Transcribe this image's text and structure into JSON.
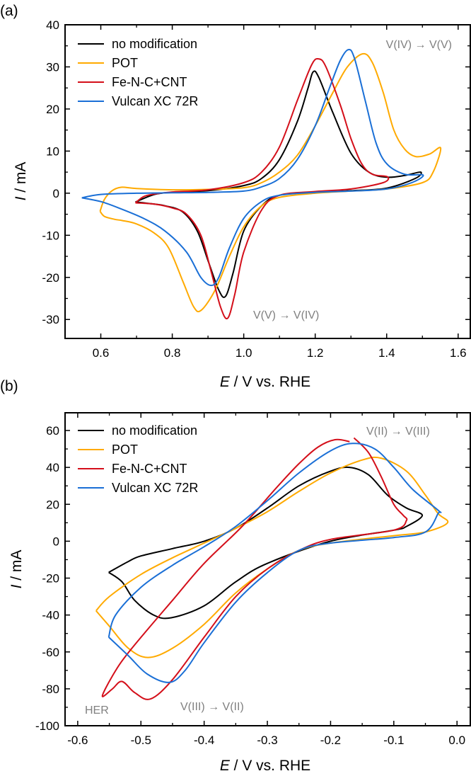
{
  "colors": {
    "no_modification": "#000000",
    "POT": "#FFAA00",
    "Fe-N-C+CNT": "#D40F1A",
    "Vulcan XC 72R": "#1A6FD6",
    "annotation": "#808080"
  },
  "chart_data": [
    {
      "type": "line",
      "panel_label": "(a)",
      "xlabel_italic": "E",
      "xlabel_rest": " / V vs. RHE",
      "ylabel_italic": "I",
      "ylabel_rest": " / mA",
      "xlim": [
        0.5,
        1.634
      ],
      "ylim": [
        -34.5,
        40
      ],
      "xticks": [
        "0.6",
        "0.8",
        "1.0",
        "1.2",
        "1.4",
        "1.6"
      ],
      "xminor_step": 0.1,
      "yticks": [
        "-30",
        "-20",
        "-10",
        "0",
        "10",
        "20",
        "30",
        "40"
      ],
      "yminor_step": 5,
      "grid": false,
      "legend_position": "top-left",
      "legend": [
        "no modification",
        "POT",
        "Fe-N-C+CNT",
        "Vulcan XC 72R"
      ],
      "annotations": [
        "V(IV) → V(V)",
        "V(V) → V(IV)"
      ],
      "series": [
        {
          "name": "no modification",
          "color": "#000000",
          "points": [
            [
              0.697,
              -2.1
            ],
            [
              0.75,
              -0.3
            ],
            [
              0.8,
              0.2
            ],
            [
              0.9,
              0.6
            ],
            [
              1.0,
              1.8
            ],
            [
              1.05,
              3.5
            ],
            [
              1.1,
              8
            ],
            [
              1.15,
              17
            ],
            [
              1.18,
              25
            ],
            [
              1.194,
              28.8
            ],
            [
              1.21,
              27.5
            ],
            [
              1.25,
              19
            ],
            [
              1.3,
              9.5
            ],
            [
              1.35,
              5
            ],
            [
              1.4,
              3.8
            ],
            [
              1.45,
              4.2
            ],
            [
              1.495,
              5.0
            ],
            [
              1.48,
              3.5
            ],
            [
              1.4,
              1.2
            ],
            [
              1.3,
              0.6
            ],
            [
              1.2,
              0.2
            ],
            [
              1.1,
              -0.5
            ],
            [
              1.05,
              -3
            ],
            [
              1.0,
              -9
            ],
            [
              0.97,
              -19
            ],
            [
              0.949,
              -24.5
            ],
            [
              0.93,
              -23
            ],
            [
              0.9,
              -16
            ],
            [
              0.87,
              -9
            ],
            [
              0.83,
              -4.5
            ],
            [
              0.78,
              -3
            ],
            [
              0.73,
              -2.4
            ],
            [
              0.697,
              -2.1
            ]
          ]
        },
        {
          "name": "POT",
          "color": "#FFAA00",
          "points": [
            [
              0.598,
              -4.3
            ],
            [
              0.61,
              -1.5
            ],
            [
              0.63,
              0.5
            ],
            [
              0.657,
              1.4
            ],
            [
              0.7,
              1.1
            ],
            [
              0.8,
              0.8
            ],
            [
              0.9,
              0.9
            ],
            [
              1.0,
              1.3
            ],
            [
              1.05,
              2.5
            ],
            [
              1.1,
              5
            ],
            [
              1.15,
              9
            ],
            [
              1.2,
              16
            ],
            [
              1.25,
              24
            ],
            [
              1.29,
              30
            ],
            [
              1.333,
              33.1
            ],
            [
              1.36,
              31
            ],
            [
              1.39,
              24
            ],
            [
              1.42,
              15
            ],
            [
              1.45,
              10.5
            ],
            [
              1.481,
              8.7
            ],
            [
              1.52,
              9.3
            ],
            [
              1.551,
              10.7
            ],
            [
              1.53,
              5
            ],
            [
              1.5,
              2.5
            ],
            [
              1.4,
              1
            ],
            [
              1.3,
              0.5
            ],
            [
              1.2,
              0
            ],
            [
              1.1,
              -1
            ],
            [
              1.05,
              -3
            ],
            [
              1.0,
              -8
            ],
            [
              0.96,
              -15
            ],
            [
              0.92,
              -23
            ],
            [
              0.881,
              -27.8
            ],
            [
              0.86,
              -27
            ],
            [
              0.83,
              -21
            ],
            [
              0.79,
              -13
            ],
            [
              0.75,
              -9.5
            ],
            [
              0.7,
              -7.3
            ],
            [
              0.66,
              -6.5
            ],
            [
              0.638,
              -6.2
            ],
            [
              0.61,
              -5.5
            ],
            [
              0.598,
              -4.3
            ]
          ]
        },
        {
          "name": "Fe-N-C+CNT",
          "color": "#D40F1A",
          "points": [
            [
              0.697,
              -2.3
            ],
            [
              0.72,
              -0.8
            ],
            [
              0.75,
              -0.2
            ],
            [
              0.8,
              0.3
            ],
            [
              0.9,
              0.8
            ],
            [
              1.0,
              2.5
            ],
            [
              1.05,
              5
            ],
            [
              1.1,
              11
            ],
            [
              1.15,
              22
            ],
            [
              1.19,
              30.5
            ],
            [
              1.21,
              31.9
            ],
            [
              1.23,
              30
            ],
            [
              1.27,
              21
            ],
            [
              1.3,
              13
            ],
            [
              1.33,
              7
            ],
            [
              1.36,
              4.5
            ],
            [
              1.402,
              3.9
            ],
            [
              1.39,
              2.5
            ],
            [
              1.3,
              1
            ],
            [
              1.2,
              0.4
            ],
            [
              1.1,
              -0.5
            ],
            [
              1.05,
              -4
            ],
            [
              1.0,
              -14
            ],
            [
              0.975,
              -24
            ],
            [
              0.955,
              -29.7
            ],
            [
              0.935,
              -27
            ],
            [
              0.91,
              -19
            ],
            [
              0.88,
              -10
            ],
            [
              0.84,
              -5
            ],
            [
              0.8,
              -3.5
            ],
            [
              0.75,
              -2.6
            ],
            [
              0.697,
              -2.3
            ]
          ]
        },
        {
          "name": "Vulcan XC 72R",
          "color": "#1A6FD6",
          "points": [
            [
              0.547,
              -1.1
            ],
            [
              0.6,
              -0.3
            ],
            [
              0.7,
              0
            ],
            [
              0.8,
              0.1
            ],
            [
              0.9,
              0.2
            ],
            [
              1.0,
              0.5
            ],
            [
              1.05,
              1.5
            ],
            [
              1.1,
              3.5
            ],
            [
              1.15,
              8
            ],
            [
              1.2,
              16
            ],
            [
              1.24,
              25
            ],
            [
              1.27,
              31.5
            ],
            [
              1.293,
              34.1
            ],
            [
              1.31,
              32
            ],
            [
              1.34,
              22
            ],
            [
              1.37,
              12
            ],
            [
              1.4,
              7
            ],
            [
              1.45,
              4.5
            ],
            [
              1.502,
              4.3
            ],
            [
              1.47,
              2.5
            ],
            [
              1.4,
              1
            ],
            [
              1.3,
              0.5
            ],
            [
              1.2,
              0.2
            ],
            [
              1.1,
              -0.5
            ],
            [
              1.05,
              -2
            ],
            [
              1.0,
              -6
            ],
            [
              0.96,
              -13
            ],
            [
              0.93,
              -20
            ],
            [
              0.909,
              -21.9
            ],
            [
              0.88,
              -20
            ],
            [
              0.84,
              -14
            ],
            [
              0.78,
              -9
            ],
            [
              0.72,
              -6
            ],
            [
              0.65,
              -3.5
            ],
            [
              0.6,
              -2
            ],
            [
              0.547,
              -1.1
            ]
          ]
        }
      ]
    },
    {
      "type": "line",
      "panel_label": "(b)",
      "xlabel_italic": "E",
      "xlabel_rest": " / V vs. RHE",
      "ylabel_italic": "I",
      "ylabel_rest": " / mA",
      "xlim": [
        -0.62,
        0.021
      ],
      "ylim": [
        -100,
        69.6
      ],
      "xticks": [
        "-0.6",
        "-0.5",
        "-0.4",
        "-0.3",
        "-0.2",
        "-0.1",
        "0.0"
      ],
      "xminor_step": 0.05,
      "yticks": [
        "-100",
        "-80",
        "-60",
        "-40",
        "-20",
        "0",
        "20",
        "40",
        "60"
      ],
      "yminor_step": 10,
      "grid": false,
      "legend_position": "top-left",
      "legend": [
        "no modification",
        "POT",
        "Fe-N-C+CNT",
        "Vulcan XC 72R"
      ],
      "annotations": [
        "V(II) → V(III)",
        "HER",
        "V(III) → V(II)"
      ],
      "series": [
        {
          "name": "no modification",
          "color": "#000000",
          "points": [
            [
              -0.551,
              -16.9
            ],
            [
              -0.52,
              -11
            ],
            [
              -0.5,
              -8
            ],
            [
              -0.45,
              -4
            ],
            [
              -0.4,
              0
            ],
            [
              -0.35,
              7
            ],
            [
              -0.3,
              18
            ],
            [
              -0.25,
              30
            ],
            [
              -0.2,
              38
            ],
            [
              -0.17,
              40
            ],
            [
              -0.14,
              36
            ],
            [
              -0.11,
              25
            ],
            [
              -0.08,
              18
            ],
            [
              -0.055,
              14
            ],
            [
              -0.08,
              8
            ],
            [
              -0.1,
              6
            ],
            [
              -0.2,
              0
            ],
            [
              -0.3,
              -12
            ],
            [
              -0.35,
              -22
            ],
            [
              -0.4,
              -35
            ],
            [
              -0.452,
              -41.5
            ],
            [
              -0.48,
              -40
            ],
            [
              -0.51,
              -32
            ],
            [
              -0.53,
              -22
            ],
            [
              -0.551,
              -16.9
            ]
          ]
        },
        {
          "name": "POT",
          "color": "#FFAA00",
          "points": [
            [
              -0.571,
              -37.7
            ],
            [
              -0.55,
              -30
            ],
            [
              -0.5,
              -18
            ],
            [
              -0.45,
              -9
            ],
            [
              -0.4,
              -1
            ],
            [
              -0.35,
              7
            ],
            [
              -0.3,
              16
            ],
            [
              -0.25,
              27
            ],
            [
              -0.2,
              37
            ],
            [
              -0.15,
              44
            ],
            [
              -0.12,
              45
            ],
            [
              -0.08,
              38
            ],
            [
              -0.05,
              25
            ],
            [
              -0.03,
              15
            ],
            [
              -0.015,
              10
            ],
            [
              -0.05,
              5
            ],
            [
              -0.1,
              3
            ],
            [
              -0.2,
              -1
            ],
            [
              -0.25,
              -5
            ],
            [
              -0.3,
              -15
            ],
            [
              -0.35,
              -28
            ],
            [
              -0.4,
              -45
            ],
            [
              -0.45,
              -58
            ],
            [
              -0.489,
              -63
            ],
            [
              -0.52,
              -58
            ],
            [
              -0.55,
              -46
            ],
            [
              -0.571,
              -37.7
            ]
          ]
        },
        {
          "name": "Fe-N-C+CNT",
          "color": "#D40F1A",
          "points": [
            [
              -0.163,
              56
            ],
            [
              -0.14,
              48
            ],
            [
              -0.12,
              35
            ],
            [
              -0.1,
              20
            ],
            [
              -0.085,
              14
            ],
            [
              -0.08,
              11.2
            ],
            [
              -0.1,
              6
            ],
            [
              -0.2,
              1
            ],
            [
              -0.25,
              -5
            ],
            [
              -0.3,
              -15
            ],
            [
              -0.35,
              -30
            ],
            [
              -0.4,
              -52
            ],
            [
              -0.45,
              -75
            ],
            [
              -0.485,
              -85.5
            ],
            [
              -0.51,
              -82
            ],
            [
              -0.53,
              -76
            ],
            [
              -0.545,
              -80
            ],
            [
              -0.561,
              -84
            ],
            [
              -0.545,
              -73
            ],
            [
              -0.519,
              -60
            ],
            [
              -0.45,
              -32
            ],
            [
              -0.4,
              -12
            ],
            [
              -0.34,
              8
            ],
            [
              -0.284,
              29.6
            ],
            [
              -0.25,
              42
            ],
            [
              -0.22,
              51
            ],
            [
              -0.193,
              55
            ],
            [
              -0.17,
              54
            ]
          ]
        },
        {
          "name": "Vulcan XC 72R",
          "color": "#1A6FD6",
          "points": [
            [
              -0.551,
              -52
            ],
            [
              -0.54,
              -40
            ],
            [
              -0.5,
              -25
            ],
            [
              -0.45,
              -13
            ],
            [
              -0.4,
              -3
            ],
            [
              -0.35,
              8
            ],
            [
              -0.3,
              22
            ],
            [
              -0.25,
              37
            ],
            [
              -0.2,
              49
            ],
            [
              -0.165,
              53
            ],
            [
              -0.13,
              50
            ],
            [
              -0.1,
              40
            ],
            [
              -0.07,
              28
            ],
            [
              -0.029,
              16.5
            ],
            [
              -0.03,
              15
            ],
            [
              -0.05,
              5
            ],
            [
              -0.1,
              2
            ],
            [
              -0.2,
              -1
            ],
            [
              -0.25,
              -5
            ],
            [
              -0.3,
              -17
            ],
            [
              -0.35,
              -33
            ],
            [
              -0.4,
              -55
            ],
            [
              -0.43,
              -70
            ],
            [
              -0.455,
              -76.5
            ],
            [
              -0.49,
              -72
            ],
            [
              -0.52,
              -62
            ],
            [
              -0.551,
              -52
            ]
          ]
        }
      ]
    }
  ]
}
